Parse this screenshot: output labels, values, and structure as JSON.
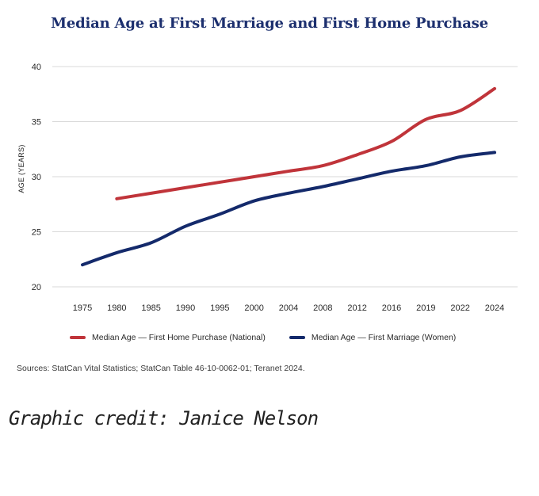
{
  "chart_data": {
    "type": "line",
    "title": "Median Age at First Marriage and First Home Purchase",
    "xlabel": "",
    "ylabel": "AGE (YEARS)",
    "ylim": [
      20,
      40
    ],
    "yticks": [
      "20",
      "25",
      "30",
      "35",
      "40"
    ],
    "categories": [
      "1975",
      "1980",
      "1985",
      "1990",
      "1995",
      "2000",
      "2004",
      "2008",
      "2012",
      "2016",
      "2019",
      "2022",
      "2024"
    ],
    "grid": true,
    "legend_position": "bottom",
    "series": [
      {
        "name": "Median Age — First Home Purchase (National)",
        "color": "#c0343a",
        "values": [
          null,
          28,
          28.5,
          29,
          29.5,
          30,
          30.5,
          31,
          32,
          33.2,
          35.2,
          36,
          38
        ]
      },
      {
        "name": "Median Age — First Marriage (Women)",
        "color": "#142a6b",
        "values": [
          22,
          23.1,
          24,
          25.5,
          26.6,
          27.8,
          28.5,
          29.1,
          29.8,
          30.5,
          31,
          31.8,
          32.2
        ]
      }
    ]
  },
  "sources": "Sources: StatCan Vital Statistics; StatCan Table 46-10-0062-01; Teranet 2024.",
  "credit": "Graphic credit: Janice Nelson"
}
